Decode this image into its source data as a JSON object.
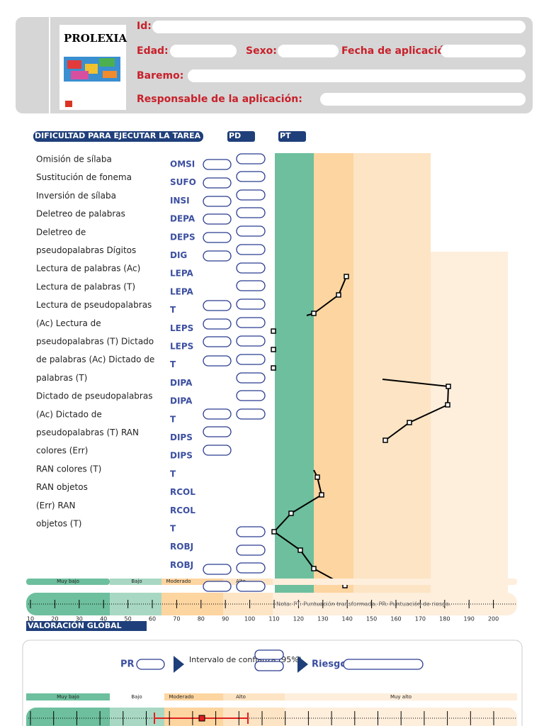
{
  "header": {
    "cover_title": "PROLEXIA",
    "id_label": "Id:",
    "age_label": "Edad:",
    "sex_label": "Sexo:",
    "date_label": "Fecha de aplicación:",
    "norm_label": "Baremo:",
    "examiner_label": "Responsable de la aplicación:"
  },
  "section": {
    "title": "DIFICULTAD PARA EJECUTAR LA TAREA",
    "pd": "PD",
    "pt": "PT"
  },
  "items": [
    "Omisión de sílaba",
    "Sustitución de fonema",
    "Inversión de sílaba",
    "Deletreo de palabras",
    "Deletreo de",
    "pseudopalabras Dígitos",
    "Lectura de palabras (Ac)",
    "Lectura de palabras (T)",
    "Lectura de pseudopalabras",
    "(Ac) Lectura de",
    "pseudopalabras (T) Dictado",
    "de palabras (Ac) Dictado de",
    "palabras (T)",
    "Dictado de pseudopalabras",
    "(Ac) Dictado de",
    "pseudopalabras (T) RAN",
    "colores (Err)",
    "RAN colores (T)",
    "RAN objetos",
    "(Err) RAN",
    "objetos (T)"
  ],
  "codes": [
    "OMSI",
    "SUFO",
    "INSI",
    "DEPA",
    "DEPS",
    "DIG",
    "LEPA",
    "LEPA",
    "T",
    "LEPS",
    "LEPS",
    "T",
    "DIPA",
    "DIPA",
    "T",
    "DIPS",
    "DIPS",
    "T",
    "RCOL",
    "RCOL",
    "T",
    "ROBJ",
    "ROBJ"
  ],
  "profile_scale": {
    "levels": [
      "Muy bajo",
      "Bajo",
      "Moderado",
      "Alto"
    ],
    "ticks": [
      "10",
      "20",
      "30",
      "40",
      "50",
      "60",
      "70",
      "80",
      "90",
      "100",
      "110",
      "120",
      "130",
      "140",
      "150",
      "160",
      "170",
      "180",
      "190",
      "200"
    ],
    "note": "Nota: PT: Puntuación transformada. PR: Puntuación de riesgo."
  },
  "global": {
    "title": "VALORACIÓN GLOBAL",
    "pr": "PR",
    "interval": "Intervalo de confianza (95%)",
    "risk": "Riesgo",
    "levels": [
      "Muy bajo",
      "Bajo",
      "Moderado",
      "Alto",
      "Muy alto"
    ]
  }
}
